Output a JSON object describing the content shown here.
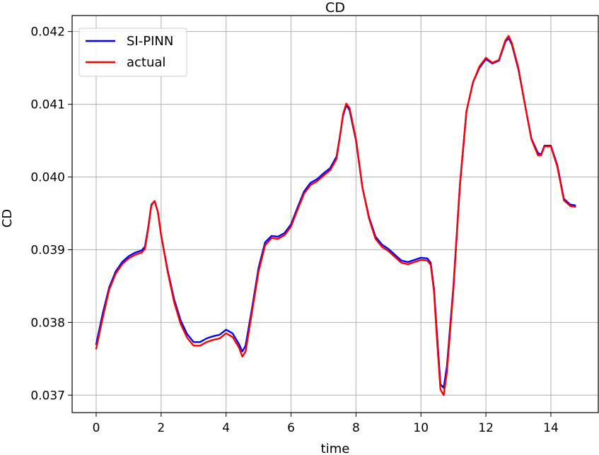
{
  "chart_data": {
    "type": "line",
    "title": "CD",
    "xlabel": "time",
    "ylabel": "CD",
    "xlim": [
      -0.74,
      15.46
    ],
    "ylim": [
      0.03676,
      0.04222
    ],
    "xticks": [
      0,
      2,
      4,
      6,
      8,
      10,
      12,
      14
    ],
    "xtick_labels": [
      "0",
      "2",
      "4",
      "6",
      "8",
      "10",
      "12",
      "14"
    ],
    "yticks": [
      0.037,
      0.038,
      0.039,
      0.04,
      0.041,
      0.042
    ],
    "ytick_labels": [
      "0.037",
      "0.038",
      "0.039",
      "0.040",
      "0.041",
      "0.042"
    ],
    "grid": true,
    "legend_position": "top-left",
    "x": [
      0.0,
      0.2,
      0.4,
      0.6,
      0.8,
      1.0,
      1.2,
      1.4,
      1.5,
      1.6,
      1.7,
      1.8,
      1.9,
      2.0,
      2.2,
      2.4,
      2.6,
      2.8,
      3.0,
      3.2,
      3.4,
      3.6,
      3.8,
      4.0,
      4.2,
      4.4,
      4.5,
      4.6,
      4.8,
      5.0,
      5.2,
      5.4,
      5.6,
      5.8,
      6.0,
      6.2,
      6.4,
      6.6,
      6.8,
      7.0,
      7.2,
      7.4,
      7.5,
      7.6,
      7.7,
      7.8,
      8.0,
      8.2,
      8.4,
      8.6,
      8.8,
      9.0,
      9.2,
      9.4,
      9.6,
      9.8,
      10.0,
      10.2,
      10.3,
      10.4,
      10.5,
      10.6,
      10.7,
      10.8,
      11.0,
      11.2,
      11.4,
      11.6,
      11.8,
      12.0,
      12.2,
      12.4,
      12.6,
      12.7,
      12.8,
      13.0,
      13.2,
      13.4,
      13.6,
      13.7,
      13.8,
      14.0,
      14.2,
      14.4,
      14.6,
      14.75
    ],
    "series": [
      {
        "name": "SI-PINN",
        "color": "#0000ff",
        "values": [
          0.0377,
          0.03812,
          0.03848,
          0.0387,
          0.03883,
          0.03891,
          0.03896,
          0.03899,
          0.03904,
          0.0393,
          0.03962,
          0.03967,
          0.03952,
          0.0392,
          0.03872,
          0.03832,
          0.03803,
          0.03784,
          0.03773,
          0.03773,
          0.03778,
          0.03781,
          0.03783,
          0.0379,
          0.03785,
          0.0377,
          0.0376,
          0.03768,
          0.0382,
          0.03875,
          0.0391,
          0.03919,
          0.03918,
          0.03923,
          0.03935,
          0.03958,
          0.0398,
          0.03992,
          0.03997,
          0.04005,
          0.04012,
          0.04028,
          0.04055,
          0.04084,
          0.04099,
          0.04092,
          0.0405,
          0.03985,
          0.03945,
          0.03918,
          0.03907,
          0.03901,
          0.03893,
          0.03885,
          0.03883,
          0.03886,
          0.03889,
          0.03888,
          0.03882,
          0.03847,
          0.0378,
          0.03715,
          0.0371,
          0.0374,
          0.0385,
          0.0399,
          0.0409,
          0.0413,
          0.0415,
          0.04162,
          0.04156,
          0.0416,
          0.04186,
          0.04191,
          0.04182,
          0.04148,
          0.041,
          0.04053,
          0.04033,
          0.04031,
          0.04043,
          0.04043,
          0.04016,
          0.0397,
          0.03962,
          0.03961
        ]
      },
      {
        "name": "actual",
        "color": "#ff0000",
        "values": [
          0.03764,
          0.03806,
          0.03845,
          0.03867,
          0.0388,
          0.03888,
          0.03893,
          0.03896,
          0.03901,
          0.03928,
          0.03961,
          0.03967,
          0.03952,
          0.0392,
          0.0387,
          0.03828,
          0.03798,
          0.03779,
          0.03768,
          0.03768,
          0.03773,
          0.03776,
          0.03778,
          0.03785,
          0.0378,
          0.03765,
          0.03753,
          0.0376,
          0.03815,
          0.0387,
          0.03906,
          0.03916,
          0.03915,
          0.0392,
          0.03932,
          0.03955,
          0.03977,
          0.03989,
          0.03994,
          0.04002,
          0.04009,
          0.04025,
          0.04054,
          0.04086,
          0.04101,
          0.04095,
          0.04052,
          0.03985,
          0.03943,
          0.03915,
          0.03904,
          0.03898,
          0.0389,
          0.03882,
          0.0388,
          0.03883,
          0.03886,
          0.03885,
          0.03879,
          0.03843,
          0.03772,
          0.03708,
          0.037,
          0.03732,
          0.03846,
          0.03988,
          0.0409,
          0.0413,
          0.04152,
          0.04164,
          0.04157,
          0.04161,
          0.04188,
          0.04194,
          0.04184,
          0.0415,
          0.041,
          0.04052,
          0.0403,
          0.0403,
          0.04042,
          0.04042,
          0.04014,
          0.03968,
          0.0396,
          0.03959
        ]
      }
    ]
  }
}
